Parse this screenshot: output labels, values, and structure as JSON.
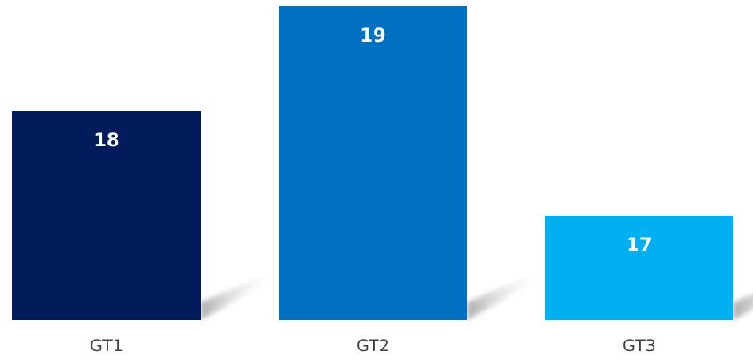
{
  "chart_data": {
    "type": "bar",
    "categories": [
      "GT1",
      "GT2",
      "GT3"
    ],
    "values": [
      18,
      19,
      17
    ],
    "colors": [
      "#001c5a",
      "#0070c0",
      "#00b0f0"
    ],
    "title": "",
    "xlabel": "",
    "ylabel": "",
    "show_value_labels": true,
    "grid": false,
    "legend": "none"
  }
}
